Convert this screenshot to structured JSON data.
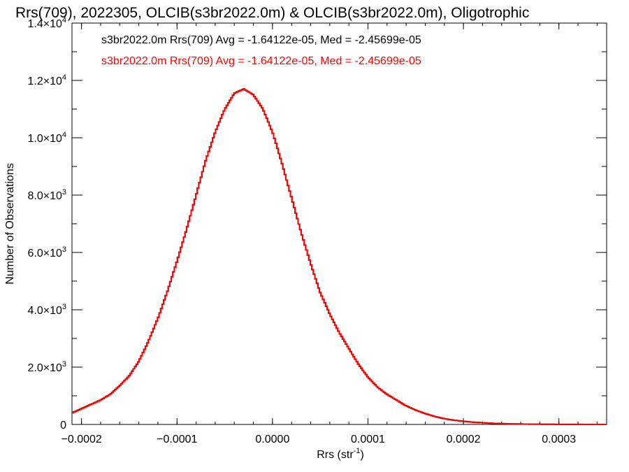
{
  "chart_data": {
    "type": "histogram",
    "title": "Rrs(709), 2022305, OLCIB(s3br2022.0m) & OLCIB(s3br2022.0m), Oligotrophic",
    "xlabel": {
      "base": "Rrs (str",
      "sup": "-1",
      "tail": ")"
    },
    "ylabel": "Number of Observations",
    "xlim": [
      -0.00021,
      0.00035
    ],
    "ylim": [
      0,
      14000
    ],
    "xticks": [
      {
        "value": -0.0002,
        "label": "-0.0002"
      },
      {
        "value": -0.0001,
        "label": "-0.0001"
      },
      {
        "value": 0.0,
        "label": "0.0000"
      },
      {
        "value": 0.0001,
        "label": "0.0001"
      },
      {
        "value": 0.0002,
        "label": "0.0002"
      },
      {
        "value": 0.0003,
        "label": "0.0003"
      }
    ],
    "yticks": [
      {
        "value": 0,
        "mant": "0",
        "exp": ""
      },
      {
        "value": 2000,
        "mant": "2.0×10",
        "exp": "3"
      },
      {
        "value": 4000,
        "mant": "4.0×10",
        "exp": "3"
      },
      {
        "value": 6000,
        "mant": "6.0×10",
        "exp": "3"
      },
      {
        "value": 8000,
        "mant": "8.0×10",
        "exp": "3"
      },
      {
        "value": 10000,
        "mant": "1.0×10",
        "exp": "4"
      },
      {
        "value": 12000,
        "mant": "1.2×10",
        "exp": "4"
      },
      {
        "value": 14000,
        "mant": "1.4×10",
        "exp": "4"
      }
    ],
    "bin_width": 1.6e-06,
    "series": [
      {
        "name": "s3br2022.0m Rrs(709) Avg = -1.64122e-05, Med = -2.45699e-05",
        "color": "#000000",
        "x": [
          -0.00021,
          -0.0002,
          -0.00019,
          -0.00018,
          -0.00017,
          -0.00016,
          -0.00015,
          -0.00014,
          -0.00013,
          -0.00012,
          -0.00011,
          -0.0001,
          -9e-05,
          -8e-05,
          -7e-05,
          -6e-05,
          -5e-05,
          -4e-05,
          -3e-05,
          -2e-05,
          -1e-05,
          0.0,
          1e-05,
          2e-05,
          3e-05,
          4e-05,
          5e-05,
          6e-05,
          7e-05,
          8e-05,
          9e-05,
          0.0001,
          0.00011,
          0.00012,
          0.00013,
          0.00014,
          0.00015,
          0.00016,
          0.00017,
          0.00018,
          0.00019,
          0.0002,
          0.00021,
          0.00022,
          0.00023,
          0.00024,
          0.00025,
          0.00026,
          0.00027,
          0.00028,
          0.00029,
          0.0003,
          0.00031,
          0.00032,
          0.00033,
          0.00034,
          0.00035
        ],
        "y": [
          400,
          550,
          700,
          850,
          1050,
          1350,
          1700,
          2200,
          2900,
          3700,
          4650,
          5700,
          6800,
          8000,
          9200,
          10200,
          11000,
          11550,
          11700,
          11500,
          11000,
          10200,
          9100,
          7900,
          6700,
          5600,
          4600,
          3850,
          3200,
          2650,
          2100,
          1650,
          1300,
          1050,
          850,
          650,
          500,
          380,
          280,
          200,
          150,
          110,
          80,
          60,
          40,
          30,
          20,
          15,
          10,
          8,
          5,
          4,
          3,
          2,
          1,
          1,
          0
        ]
      },
      {
        "name": "s3br2022.0m Rrs(709) Avg = -1.64122e-05, Med = -2.45699e-05",
        "color": "#ff0000",
        "x": [
          -0.00021,
          -0.0002,
          -0.00019,
          -0.00018,
          -0.00017,
          -0.00016,
          -0.00015,
          -0.00014,
          -0.00013,
          -0.00012,
          -0.00011,
          -0.0001,
          -9e-05,
          -8e-05,
          -7e-05,
          -6e-05,
          -5e-05,
          -4e-05,
          -3e-05,
          -2e-05,
          -1e-05,
          0.0,
          1e-05,
          2e-05,
          3e-05,
          4e-05,
          5e-05,
          6e-05,
          7e-05,
          8e-05,
          9e-05,
          0.0001,
          0.00011,
          0.00012,
          0.00013,
          0.00014,
          0.00015,
          0.00016,
          0.00017,
          0.00018,
          0.00019,
          0.0002,
          0.00021,
          0.00022,
          0.00023,
          0.00024,
          0.00025,
          0.00026,
          0.00027,
          0.00028,
          0.00029,
          0.0003,
          0.00031,
          0.00032,
          0.00033,
          0.00034,
          0.00035
        ],
        "y": [
          400,
          550,
          700,
          850,
          1050,
          1350,
          1700,
          2200,
          2900,
          3700,
          4650,
          5700,
          6800,
          8000,
          9200,
          10200,
          11000,
          11550,
          11700,
          11500,
          11000,
          10200,
          9100,
          7900,
          6700,
          5600,
          4600,
          3850,
          3200,
          2650,
          2100,
          1650,
          1300,
          1050,
          850,
          650,
          500,
          380,
          280,
          200,
          150,
          110,
          80,
          60,
          40,
          30,
          20,
          15,
          10,
          8,
          5,
          4,
          3,
          2,
          1,
          1,
          0
        ]
      }
    ],
    "legend_placement": "top-left inside"
  }
}
